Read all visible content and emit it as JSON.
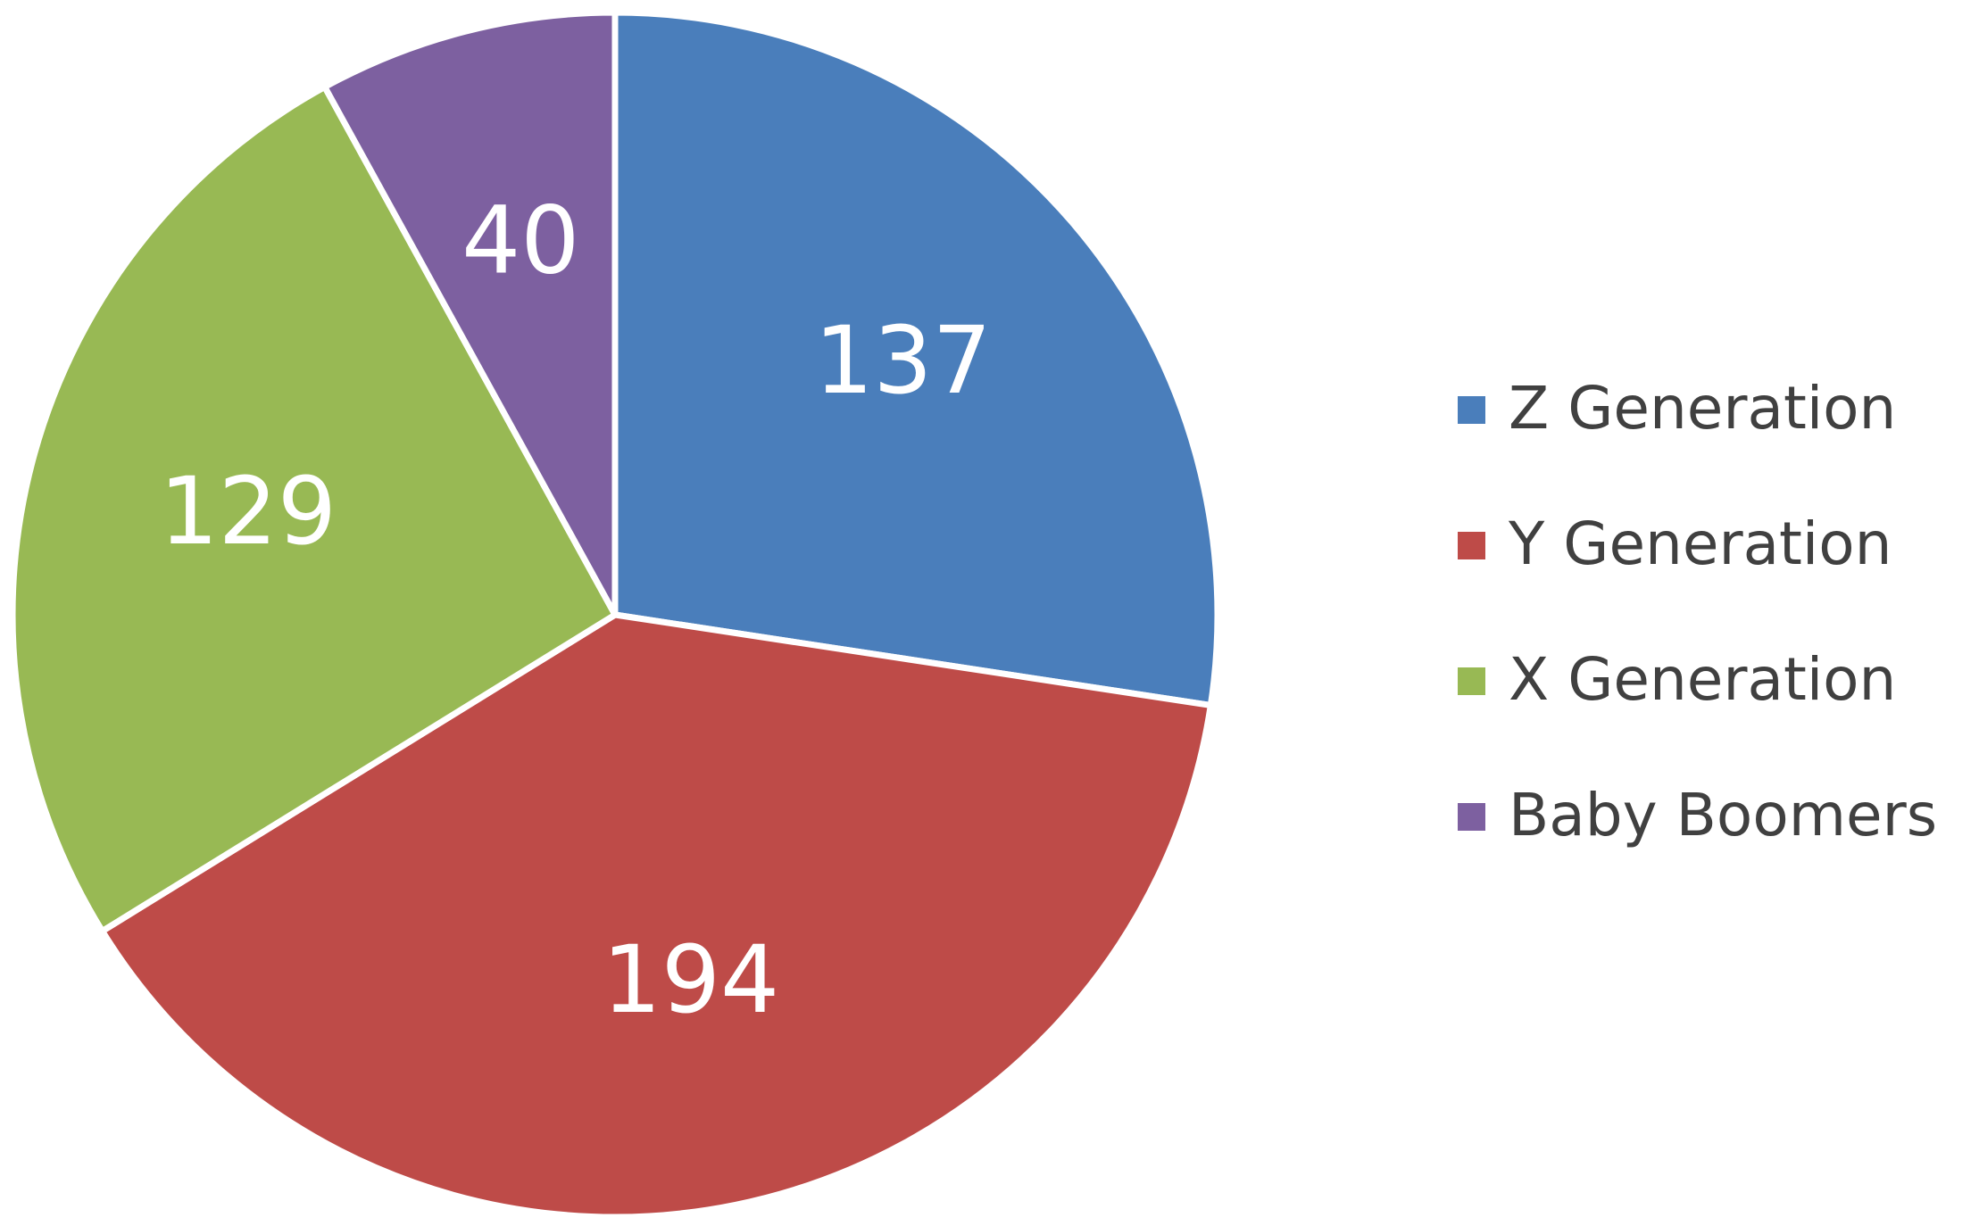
{
  "chart_data": {
    "type": "pie",
    "categories": [
      "Z Generation",
      "Y Generation",
      "X Generation",
      "Baby Boomers"
    ],
    "values": [
      137,
      194,
      129,
      40
    ],
    "colors": [
      "#4a7ebb",
      "#be4b48",
      "#98b954",
      "#7d60a0"
    ],
    "legend": "right"
  }
}
